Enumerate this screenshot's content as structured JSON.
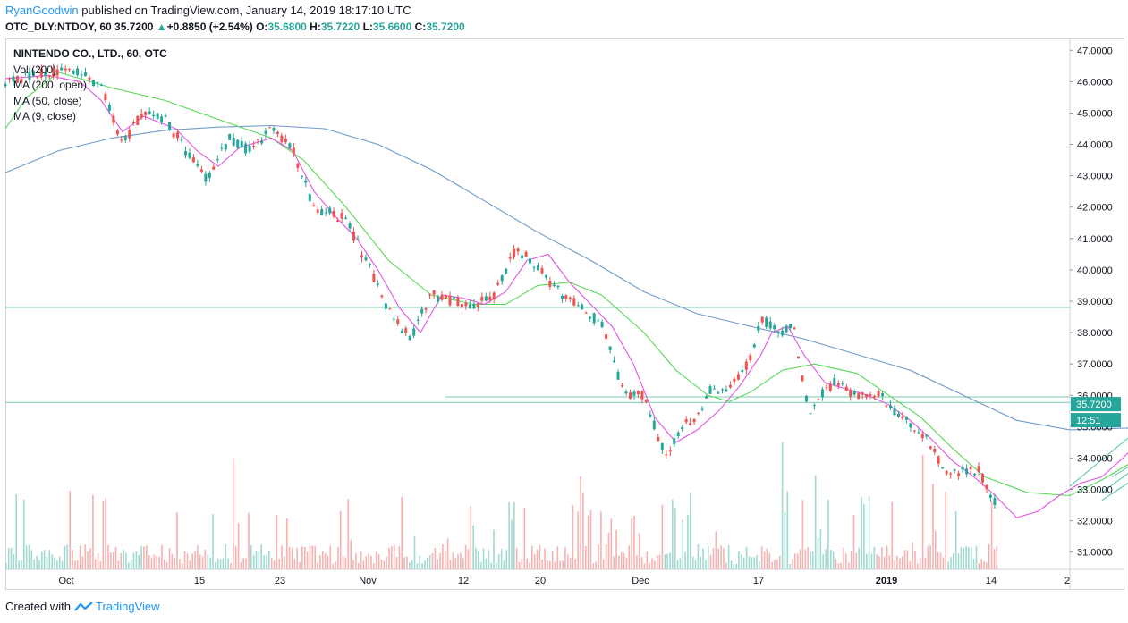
{
  "header": {
    "author": "RyanGoodwin",
    "published_text": "published on TradingView.com, January 14, 2019 18:17:10 UTC",
    "symbol_line": "OTC_DLY:NTDOY, 60",
    "last_price": "35.7200",
    "change_arrow": "▲",
    "change": "+0.8850 (+2.54%)",
    "o_label": "O:",
    "o_value": "35.6800",
    "h_label": "H:",
    "h_value": "35.7220",
    "l_label": "L:",
    "l_value": "35.6600",
    "c_label": "C:",
    "c_value": "35.7200"
  },
  "legend": {
    "title": "NINTENDO CO., LTD., 60, OTC",
    "items": [
      "Vol (200)",
      "MA (200, open)",
      "MA (50, close)",
      "MA (9, close)"
    ]
  },
  "footer": {
    "created_with": "Created with",
    "brand": "TradingView",
    "brand_icon": "tradingview-logo-icon"
  },
  "colors": {
    "up": "#26a69a",
    "down": "#ef5350",
    "ma200": "#6f9bc8",
    "ma50": "#57d957",
    "ma9": "#e254e2",
    "hline": "#79c9b3",
    "trend": "#4fc3a1",
    "author": "#2196f3"
  },
  "chart_data": {
    "type": "candlestick",
    "symbol": "OTC_DLY:NTDOY",
    "interval": "60",
    "y_axis": {
      "ticks": [
        "47.0000",
        "46.0000",
        "45.0000",
        "44.0000",
        "43.0000",
        "42.0000",
        "41.0000",
        "40.0000",
        "39.0000",
        "38.0000",
        "37.0000",
        "36.0000",
        "35.0000",
        "34.0000",
        "33.0000",
        "32.0000",
        "31.0000"
      ],
      "range": [
        30.45,
        47.35
      ]
    },
    "x_axis": {
      "ticks": [
        "Oct",
        "15",
        "23",
        "Nov",
        "12",
        "20",
        "Dec",
        "17",
        "2019",
        "14",
        "2"
      ],
      "bold_ticks": [
        "2019"
      ]
    },
    "price_labels": {
      "last": "35.7200",
      "countdown": "12:51",
      "hline_label": "36.0000"
    },
    "horizontal_lines": [
      38.8,
      35.95,
      35.77
    ],
    "price_path": [
      [
        0.0,
        46.0
      ],
      [
        0.04,
        46.3
      ],
      [
        0.06,
        46.4
      ],
      [
        0.09,
        45.9
      ],
      [
        0.11,
        44.0
      ],
      [
        0.13,
        45.1
      ],
      [
        0.15,
        44.8
      ],
      [
        0.17,
        43.8
      ],
      [
        0.19,
        42.8
      ],
      [
        0.21,
        44.2
      ],
      [
        0.23,
        43.8
      ],
      [
        0.25,
        44.5
      ],
      [
        0.27,
        43.8
      ],
      [
        0.29,
        42.0
      ],
      [
        0.32,
        41.6
      ],
      [
        0.34,
        40.2
      ],
      [
        0.36,
        38.7
      ],
      [
        0.38,
        37.8
      ],
      [
        0.4,
        39.2
      ],
      [
        0.42,
        39.0
      ],
      [
        0.44,
        38.9
      ],
      [
        0.46,
        39.2
      ],
      [
        0.48,
        40.7
      ],
      [
        0.5,
        40.1
      ],
      [
        0.52,
        39.3
      ],
      [
        0.54,
        38.8
      ],
      [
        0.56,
        38.3
      ],
      [
        0.58,
        36.1
      ],
      [
        0.6,
        36.0
      ],
      [
        0.62,
        34.0
      ],
      [
        0.635,
        35.0
      ],
      [
        0.65,
        35.2
      ],
      [
        0.66,
        36.2
      ],
      [
        0.68,
        36.1
      ],
      [
        0.7,
        37.2
      ],
      [
        0.71,
        38.5
      ],
      [
        0.73,
        37.9
      ],
      [
        0.74,
        38.3
      ],
      [
        0.755,
        35.4
      ],
      [
        0.77,
        36.2
      ],
      [
        0.78,
        36.4
      ],
      [
        0.8,
        36.0
      ],
      [
        0.82,
        36.1
      ],
      [
        0.84,
        35.3
      ],
      [
        0.86,
        34.9
      ],
      [
        0.87,
        34.3
      ],
      [
        0.885,
        33.6
      ],
      [
        0.9,
        33.6
      ],
      [
        0.915,
        33.6
      ],
      [
        0.93,
        32.6
      ],
      [
        0.945,
        31.7
      ],
      [
        0.96,
        32.4
      ],
      [
        0.975,
        32.8
      ],
      [
        0.99,
        33.2
      ],
      [
        1.0,
        33.1
      ]
    ],
    "late_price_path": [
      [
        0.99,
        33.1
      ],
      [
        1.01,
        33.5
      ],
      [
        1.03,
        33.6
      ],
      [
        1.05,
        34.3
      ],
      [
        1.07,
        35.0
      ],
      [
        1.085,
        35.4
      ],
      [
        1.1,
        34.8
      ],
      [
        1.115,
        35.1
      ],
      [
        1.125,
        35.7
      ]
    ],
    "ma200": [
      [
        0,
        43.1
      ],
      [
        0.05,
        43.8
      ],
      [
        0.1,
        44.2
      ],
      [
        0.15,
        44.45
      ],
      [
        0.2,
        44.55
      ],
      [
        0.25,
        44.6
      ],
      [
        0.3,
        44.5
      ],
      [
        0.35,
        44.0
      ],
      [
        0.4,
        43.2
      ],
      [
        0.45,
        42.2
      ],
      [
        0.5,
        41.2
      ],
      [
        0.55,
        40.3
      ],
      [
        0.6,
        39.3
      ],
      [
        0.65,
        38.6
      ],
      [
        0.7,
        38.2
      ],
      [
        0.75,
        37.8
      ],
      [
        0.8,
        37.3
      ],
      [
        0.85,
        36.8
      ],
      [
        0.9,
        36.0
      ],
      [
        0.95,
        35.2
      ],
      [
        1.0,
        34.9
      ],
      [
        1.05,
        34.95
      ],
      [
        1.1,
        34.95
      ]
    ],
    "ma50": [
      [
        0,
        44.5
      ],
      [
        0.02,
        45.5
      ],
      [
        0.05,
        46.3
      ],
      [
        0.1,
        45.8
      ],
      [
        0.15,
        45.4
      ],
      [
        0.2,
        44.8
      ],
      [
        0.25,
        44.2
      ],
      [
        0.28,
        43.5
      ],
      [
        0.32,
        42.0
      ],
      [
        0.36,
        40.3
      ],
      [
        0.4,
        39.2
      ],
      [
        0.44,
        38.9
      ],
      [
        0.47,
        38.9
      ],
      [
        0.5,
        39.5
      ],
      [
        0.53,
        39.6
      ],
      [
        0.56,
        39.2
      ],
      [
        0.6,
        38.0
      ],
      [
        0.63,
        36.8
      ],
      [
        0.66,
        36.0
      ],
      [
        0.68,
        35.8
      ],
      [
        0.7,
        36.1
      ],
      [
        0.73,
        36.8
      ],
      [
        0.76,
        37.0
      ],
      [
        0.8,
        36.7
      ],
      [
        0.83,
        36.0
      ],
      [
        0.86,
        35.3
      ],
      [
        0.89,
        34.3
      ],
      [
        0.92,
        33.4
      ],
      [
        0.96,
        32.9
      ],
      [
        1.0,
        32.8
      ],
      [
        1.03,
        33.3
      ],
      [
        1.06,
        33.9
      ],
      [
        1.09,
        34.3
      ],
      [
        1.12,
        34.6
      ]
    ],
    "ma9": [
      [
        0,
        46.1
      ],
      [
        0.04,
        46.2
      ],
      [
        0.07,
        46.0
      ],
      [
        0.09,
        45.4
      ],
      [
        0.11,
        44.4
      ],
      [
        0.13,
        44.9
      ],
      [
        0.16,
        44.5
      ],
      [
        0.18,
        43.8
      ],
      [
        0.2,
        43.3
      ],
      [
        0.22,
        43.9
      ],
      [
        0.25,
        44.2
      ],
      [
        0.27,
        43.8
      ],
      [
        0.29,
        42.5
      ],
      [
        0.31,
        41.7
      ],
      [
        0.33,
        41.0
      ],
      [
        0.35,
        40.0
      ],
      [
        0.37,
        38.8
      ],
      [
        0.39,
        38.0
      ],
      [
        0.41,
        39.2
      ],
      [
        0.43,
        39.1
      ],
      [
        0.45,
        38.9
      ],
      [
        0.47,
        39.3
      ],
      [
        0.49,
        40.3
      ],
      [
        0.51,
        40.5
      ],
      [
        0.53,
        39.6
      ],
      [
        0.55,
        38.9
      ],
      [
        0.57,
        38.2
      ],
      [
        0.59,
        37.0
      ],
      [
        0.61,
        35.3
      ],
      [
        0.63,
        34.5
      ],
      [
        0.65,
        34.9
      ],
      [
        0.67,
        35.5
      ],
      [
        0.69,
        36.3
      ],
      [
        0.71,
        37.3
      ],
      [
        0.72,
        38.0
      ],
      [
        0.735,
        38.2
      ],
      [
        0.75,
        37.3
      ],
      [
        0.77,
        36.4
      ],
      [
        0.79,
        36.2
      ],
      [
        0.81,
        36.0
      ],
      [
        0.83,
        35.7
      ],
      [
        0.85,
        35.2
      ],
      [
        0.87,
        34.6
      ],
      [
        0.89,
        33.9
      ],
      [
        0.91,
        33.4
      ],
      [
        0.93,
        32.8
      ],
      [
        0.95,
        32.1
      ],
      [
        0.97,
        32.3
      ],
      [
        0.99,
        32.8
      ],
      [
        1.01,
        33.2
      ],
      [
        1.03,
        33.4
      ],
      [
        1.05,
        34.0
      ],
      [
        1.07,
        34.7
      ],
      [
        1.09,
        35.1
      ],
      [
        1.11,
        35.0
      ],
      [
        1.125,
        35.2
      ]
    ],
    "trendlines": [
      [
        [
          1.0,
          33.1
        ],
        [
          1.16,
          37.6
        ]
      ],
      [
        [
          1.03,
          32.9
        ],
        [
          1.2,
          37.1
        ]
      ],
      [
        [
          1.03,
          32.65
        ],
        [
          1.13,
          34.9
        ]
      ],
      [
        [
          1.04,
          33.4
        ],
        [
          1.12,
          35.1
        ]
      ]
    ]
  }
}
